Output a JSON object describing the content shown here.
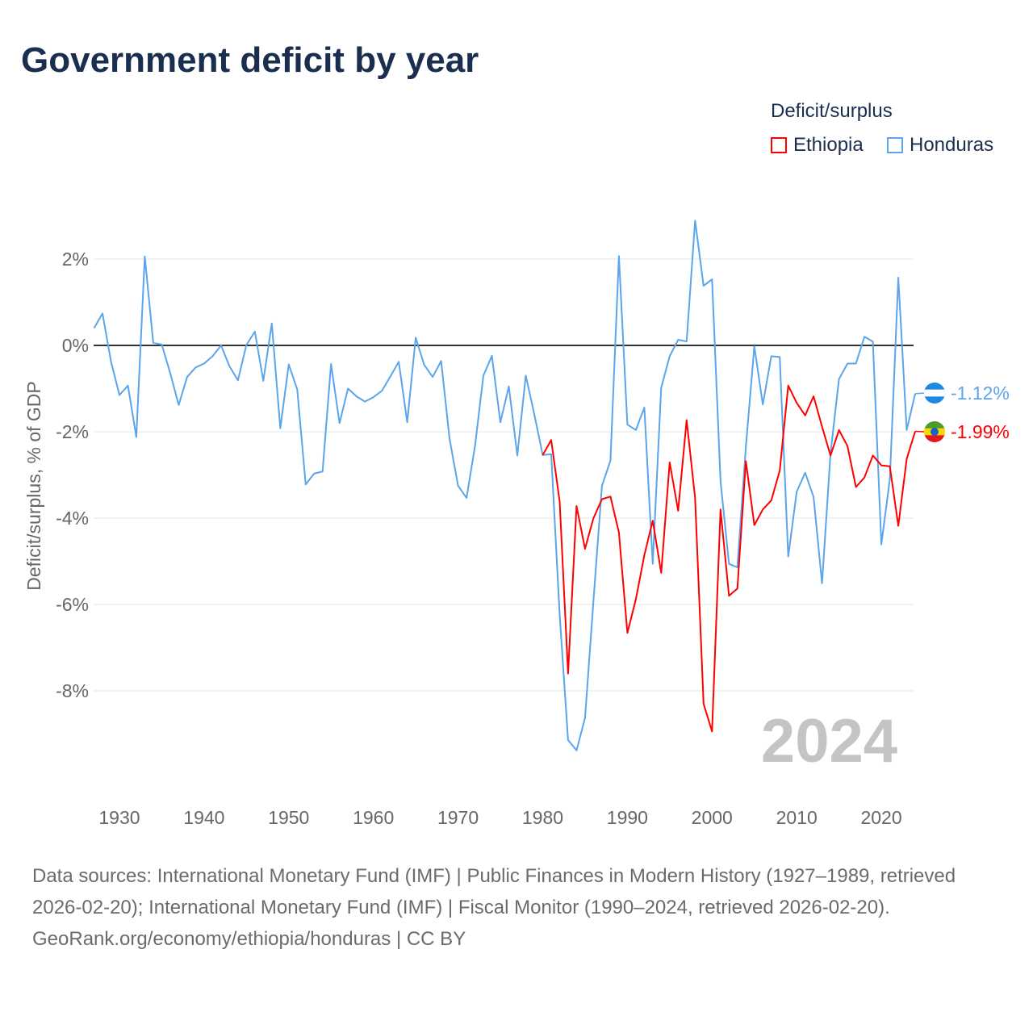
{
  "title": "Government deficit by year",
  "legend": {
    "title": "Deficit/surplus",
    "items": [
      {
        "label": "Ethiopia",
        "color": "#ff0000"
      },
      {
        "label": "Honduras",
        "color": "#5aa5eb"
      }
    ]
  },
  "chart_data": {
    "type": "line",
    "title": "Government deficit by year",
    "xlabel": "",
    "ylabel": "Deficit/surplus, % of GDP",
    "xlim": [
      1927,
      2024
    ],
    "ylim": [
      -10,
      3
    ],
    "y_ticks": [
      2,
      0,
      -2,
      -4,
      -6,
      -8
    ],
    "y_tick_labels": [
      "2%",
      "0%",
      "-2%",
      "-4%",
      "-6%",
      "-8%"
    ],
    "x_ticks": [
      1930,
      1940,
      1950,
      1960,
      1970,
      1980,
      1990,
      2000,
      2010,
      2020
    ],
    "x_tick_labels": [
      "1930",
      "1940",
      "1950",
      "1960",
      "1970",
      "1980",
      "1990",
      "2000",
      "2010",
      "2020"
    ],
    "grid": true,
    "legend_position": "top-right",
    "year_watermark": "2024",
    "series": [
      {
        "name": "Honduras",
        "color": "#5aa5eb",
        "end_label": "-1.12%",
        "x_start": 1927,
        "values": [
          0.4,
          0.74,
          -0.37,
          -1.15,
          -0.93,
          -2.12,
          2.06,
          0.06,
          0.02,
          -0.64,
          -1.38,
          -0.73,
          -0.51,
          -0.42,
          -0.25,
          0.0,
          -0.48,
          -0.81,
          0.01,
          0.32,
          -0.82,
          0.51,
          -1.92,
          -0.44,
          -1.02,
          -3.22,
          -2.97,
          -2.92,
          -0.43,
          -1.8,
          -1.0,
          -1.18,
          -1.3,
          -1.2,
          -1.05,
          -0.72,
          -0.38,
          -1.78,
          0.18,
          -0.45,
          -0.73,
          -0.36,
          -2.17,
          -3.25,
          -3.53,
          -2.34,
          -0.7,
          -0.24,
          -1.78,
          -0.95,
          -2.55,
          -0.7,
          -1.59,
          -2.54,
          -2.52,
          -6.24,
          -9.14,
          -9.38,
          -8.63,
          -5.9,
          -3.25,
          -2.67,
          2.07,
          -1.83,
          -1.96,
          -1.44,
          -5.06,
          -0.98,
          -0.25,
          0.13,
          0.09,
          2.89,
          1.38,
          1.53,
          -3.14,
          -5.06,
          -5.14,
          -2.35,
          -0.02,
          -1.37,
          -0.25,
          -0.27,
          -4.89,
          -3.39,
          -2.95,
          -3.51,
          -5.51,
          -2.5,
          -0.78,
          -0.42,
          -0.42,
          0.2,
          0.09,
          -4.61,
          -3.1,
          1.57,
          -1.96,
          -1.12
        ]
      },
      {
        "name": "Ethiopia",
        "color": "#ff0000",
        "end_label": "-1.99%",
        "x_start": 1980,
        "values": [
          -2.54,
          -2.19,
          -3.62,
          -7.6,
          -3.72,
          -4.71,
          -4.0,
          -3.56,
          -3.5,
          -4.33,
          -6.66,
          -5.88,
          -4.86,
          -4.06,
          -5.27,
          -2.71,
          -3.83,
          -1.73,
          -3.53,
          -8.3,
          -8.94,
          -3.8,
          -5.8,
          -5.63,
          -2.68,
          -4.16,
          -3.8,
          -3.59,
          -2.9,
          -0.93,
          -1.33,
          -1.62,
          -1.18,
          -1.88,
          -2.55,
          -1.96,
          -2.33,
          -3.28,
          -3.06,
          -2.55,
          -2.78,
          -2.8,
          -4.18,
          -2.63,
          -1.99
        ]
      }
    ]
  },
  "footer": {
    "sources": "Data sources: International Monetary Fund (IMF) | Public Finances in Modern History (1927–1989, retrieved 2026-02-20); International Monetary Fund (IMF) | Fiscal Monitor (1990–2024, retrieved 2026-02-20).",
    "attribution": "GeoRank.org/economy/ethiopia/honduras | CC BY"
  }
}
